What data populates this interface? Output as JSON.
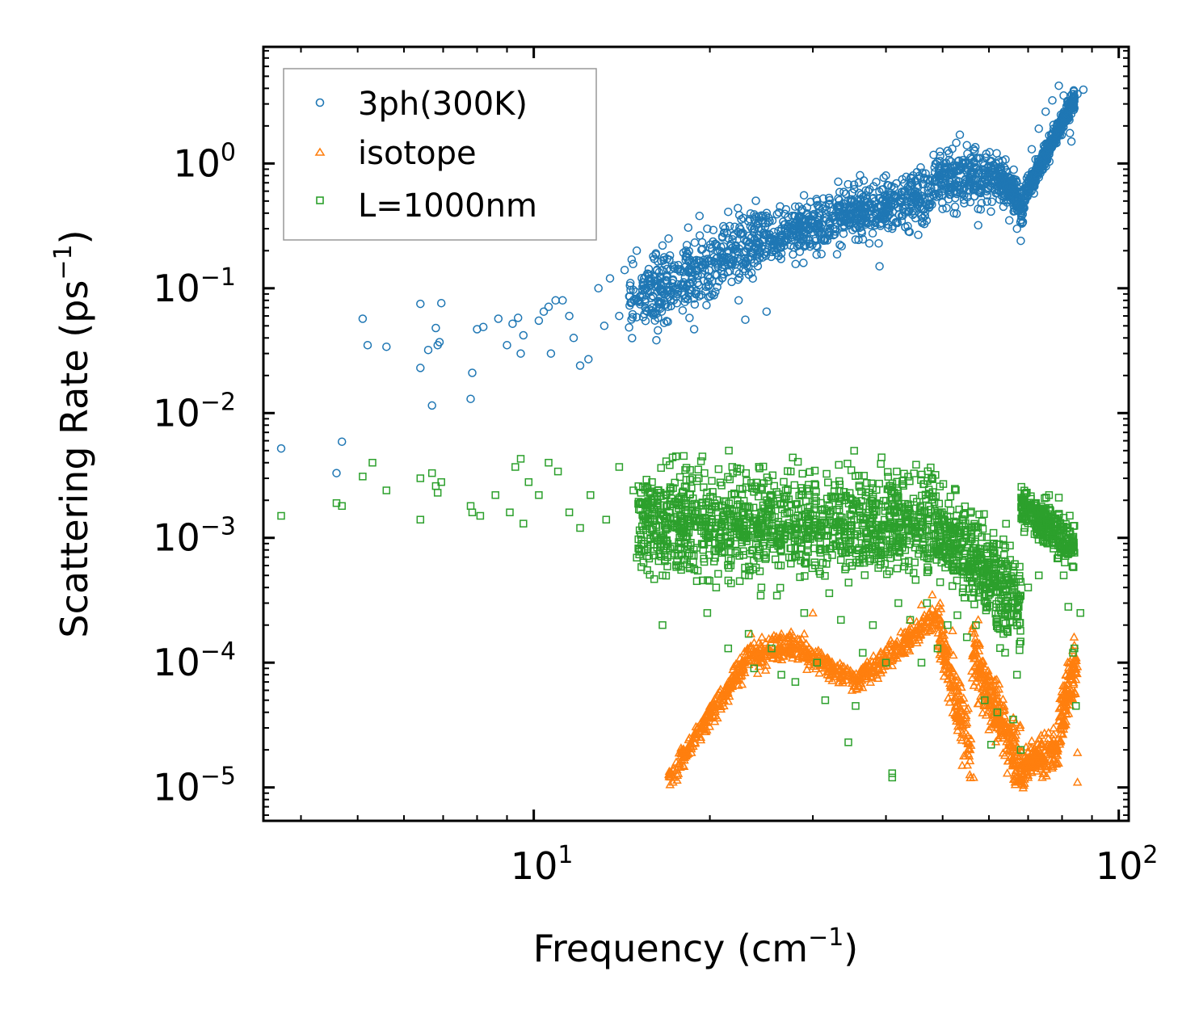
{
  "chart_data": {
    "type": "scatter",
    "title": "",
    "xlabel": "Frequency (cm",
    "xlabel_sup": "−1",
    "xlabel_end": ")",
    "ylabel": "Scattering Rate (ps",
    "ylabel_sup": "−1",
    "ylabel_end": ")",
    "xscale": "log",
    "yscale": "log",
    "xlim": [
      3.45,
      104
    ],
    "ylim": [
      5.4e-06,
      8.6
    ],
    "x_ticks": [
      {
        "value": 10,
        "base": "10",
        "exp": "1"
      },
      {
        "value": 100,
        "base": "10",
        "exp": "2"
      }
    ],
    "y_ticks": [
      {
        "value": 1,
        "base": "10",
        "exp": "0"
      },
      {
        "value": 0.1,
        "base": "10",
        "exp": "−1"
      },
      {
        "value": 0.01,
        "base": "10",
        "exp": "−2"
      },
      {
        "value": 0.001,
        "base": "10",
        "exp": "−3"
      },
      {
        "value": 0.0001,
        "base": "10",
        "exp": "−4"
      },
      {
        "value": 1e-05,
        "base": "10",
        "exp": "−5"
      }
    ],
    "legend_position": "top-left",
    "series": [
      {
        "name": "3ph(300K)",
        "marker": "circle",
        "color": "#1f77b4",
        "points": [
          [
            3.7,
            0.0052
          ],
          [
            4.6,
            0.0033
          ],
          [
            4.7,
            0.0059
          ],
          [
            5.1,
            0.057
          ],
          [
            5.2,
            0.035
          ],
          [
            5.6,
            0.034
          ],
          [
            6.4,
            0.075
          ],
          [
            6.4,
            0.023
          ],
          [
            6.6,
            0.032
          ],
          [
            6.7,
            0.0115
          ],
          [
            6.8,
            0.048
          ],
          [
            6.85,
            0.035
          ],
          [
            6.9,
            0.037
          ],
          [
            6.95,
            0.076
          ],
          [
            7.8,
            0.013
          ],
          [
            7.85,
            0.021
          ],
          [
            8.0,
            0.047
          ],
          [
            8.2,
            0.049
          ],
          [
            8.7,
            0.057
          ],
          [
            9.0,
            0.035
          ],
          [
            9.2,
            0.052
          ],
          [
            9.4,
            0.058
          ],
          [
            9.5,
            0.03
          ],
          [
            9.6,
            0.042
          ],
          [
            10.2,
            0.055
          ],
          [
            10.4,
            0.065
          ],
          [
            10.6,
            0.071
          ],
          [
            10.7,
            0.03
          ],
          [
            10.9,
            0.08
          ],
          [
            11.2,
            0.08
          ],
          [
            11.5,
            0.06
          ],
          [
            11.7,
            0.04
          ],
          [
            12.0,
            0.024
          ],
          [
            12.4,
            0.027
          ],
          [
            12.9,
            0.1
          ],
          [
            13.2,
            0.05
          ],
          [
            13.5,
            0.12
          ],
          [
            14.0,
            0.06
          ],
          [
            14.3,
            0.14
          ],
          [
            14.7,
            0.17
          ],
          [
            15.0,
            0.2
          ],
          [
            15.5,
            0.07
          ],
          [
            16.0,
            0.18
          ],
          [
            16.3,
            0.046
          ],
          [
            16.6,
            0.22
          ],
          [
            17.0,
            0.25
          ],
          [
            17.6,
            0.09
          ],
          [
            18.2,
            0.2
          ],
          [
            18.8,
            0.047
          ],
          [
            19.2,
            0.38
          ],
          [
            19.8,
            0.3
          ],
          [
            20.5,
            0.16
          ],
          [
            21.0,
            0.26
          ],
          [
            21.5,
            0.41
          ],
          [
            22.4,
            0.08
          ],
          [
            23.0,
            0.056
          ],
          [
            23.8,
            0.3
          ],
          [
            24.5,
            0.35
          ],
          [
            25.0,
            0.065
          ],
          [
            26.5,
            0.19
          ],
          [
            27.5,
            0.22
          ],
          [
            28.5,
            0.27
          ],
          [
            29.5,
            0.3
          ],
          [
            30.5,
            0.5
          ],
          [
            31.5,
            0.25
          ],
          [
            33.0,
            0.45
          ],
          [
            34.0,
            0.42
          ],
          [
            35.0,
            0.5
          ],
          [
            36.0,
            0.58
          ],
          [
            37.5,
            0.62
          ],
          [
            38.5,
            0.71
          ],
          [
            39.0,
            0.15
          ],
          [
            40.0,
            0.8
          ],
          [
            41.0,
            0.3
          ],
          [
            42.5,
            0.5
          ],
          [
            44.5,
            0.8
          ],
          [
            46.0,
            0.55
          ],
          [
            48.5,
            0.85
          ],
          [
            49.5,
            1.15
          ],
          [
            50.5,
            0.7
          ],
          [
            52.5,
            0.45
          ],
          [
            53.5,
            1.7
          ],
          [
            55.0,
            1.4
          ],
          [
            56.5,
            1.3
          ],
          [
            57.5,
            0.32
          ],
          [
            59.5,
            0.6
          ],
          [
            60.5,
            0.85
          ],
          [
            62.0,
            0.58
          ],
          [
            63.5,
            0.45
          ],
          [
            65.0,
            0.35
          ],
          [
            67.0,
            0.3
          ],
          [
            68.0,
            0.24
          ],
          [
            70.0,
            0.8
          ],
          [
            71.0,
            1.3
          ],
          [
            73.0,
            1.9
          ],
          [
            75.0,
            2.6
          ],
          [
            77.0,
            3.2
          ],
          [
            79.0,
            4.2
          ],
          [
            80.5,
            3.5
          ],
          [
            81.5,
            2.4
          ],
          [
            82.5,
            1.75
          ],
          [
            83.0,
            1.5
          ],
          [
            85.0,
            3.6
          ],
          [
            87.0,
            3.9
          ]
        ],
        "clusters": [
          {
            "x": [
              14.5,
              24.0
            ],
            "y_mid": [
              0.07,
              0.25
            ],
            "y_spread": 0.4,
            "n": 420
          },
          {
            "x": [
              24.0,
              48.0
            ],
            "y_mid": [
              0.25,
              0.55
            ],
            "y_spread": 0.3,
            "n": 650
          },
          {
            "x": [
              48.0,
              62.0
            ],
            "y_mid": [
              0.75,
              0.8
            ],
            "y_spread": 0.28,
            "n": 260
          },
          {
            "x": [
              62.0,
              69.0
            ],
            "y_mid": [
              0.8,
              0.45
            ],
            "y_spread": 0.2,
            "n": 170
          },
          {
            "x": [
              69.0,
              84.0
            ],
            "y_mid": [
              0.55,
              3.3
            ],
            "y_spread": 0.12,
            "n": 330
          }
        ]
      },
      {
        "name": "isotope",
        "marker": "triangle",
        "color": "#ff7f0e",
        "points": [
          [
            17.1,
            1.05e-05
          ],
          [
            17.3,
            1.1e-05
          ],
          [
            17.6,
            1.25e-05
          ],
          [
            18.0,
            1.5e-05
          ],
          [
            18.6,
            1.9e-05
          ],
          [
            19.3,
            2.4e-05
          ],
          [
            19.7,
            2.8e-05
          ],
          [
            20.6,
            3.6e-05
          ],
          [
            21.5,
            4.9e-05
          ],
          [
            22.7,
            6.7e-05
          ],
          [
            23.2,
            0.00013
          ],
          [
            23.5,
            0.00017
          ],
          [
            24.0,
            0.0001
          ],
          [
            25.0,
            9.5e-05
          ],
          [
            26.0,
            0.00016
          ],
          [
            26.5,
            0.00017
          ],
          [
            27.5,
            0.00015
          ],
          [
            29.0,
            0.00017
          ],
          [
            30.0,
            0.00025
          ],
          [
            31.0,
            0.00012
          ],
          [
            33.0,
            8e-05
          ],
          [
            35.0,
            6e-05
          ],
          [
            36.0,
            6.5e-05
          ],
          [
            38.0,
            8.5e-05
          ],
          [
            40.5,
            0.00014
          ],
          [
            44.0,
            0.00022
          ],
          [
            46.0,
            0.00029
          ],
          [
            48.0,
            0.00035
          ],
          [
            49.5,
            0.0003
          ],
          [
            52.0,
            0.00018
          ],
          [
            54.0,
            1.5e-05
          ],
          [
            56.5,
            1.2e-05
          ],
          [
            57.5,
            0.00022
          ],
          [
            60.0,
            8e-05
          ],
          [
            63.0,
            3e-05
          ],
          [
            66.5,
            1.1e-05
          ],
          [
            70.0,
            1.2e-05
          ],
          [
            74.0,
            1.2e-05
          ],
          [
            78.0,
            2e-05
          ],
          [
            81.0,
            6e-05
          ],
          [
            84.5,
            0.00011
          ],
          [
            85.0,
            1.1e-05
          ],
          [
            85.0,
            1.9e-05
          ]
        ],
        "clusters": [
          {
            "x": [
              17.0,
              23.5
            ],
            "y_mid": [
              1.2e-05,
              0.00012
            ],
            "y_spread": 0.12,
            "n": 220
          },
          {
            "x": [
              23.5,
              27.5
            ],
            "y_mid": [
              0.00011,
              0.00014
            ],
            "y_spread": 0.15,
            "n": 110
          },
          {
            "x": [
              27.5,
              35.5
            ],
            "y_mid": [
              0.00014,
              7e-05
            ],
            "y_spread": 0.12,
            "n": 170
          },
          {
            "x": [
              35.5,
              49.0
            ],
            "y_mid": [
              7e-05,
              0.00024
            ],
            "y_spread": 0.12,
            "n": 220
          },
          {
            "x": [
              49.0,
              56.0
            ],
            "y_mid": [
              0.0002,
              1.8e-05
            ],
            "y_spread": 0.3,
            "n": 160
          },
          {
            "x": [
              56.0,
              69.0
            ],
            "y_mid": [
              0.00012,
              1.2e-05
            ],
            "y_spread": 0.35,
            "n": 280
          },
          {
            "x": [
              69.0,
              79.0
            ],
            "y_mid": [
              1.5e-05,
              2.2e-05
            ],
            "y_spread": 0.2,
            "n": 160
          },
          {
            "x": [
              79.0,
              85.0
            ],
            "y_mid": [
              3e-05,
              0.00011
            ],
            "y_spread": 0.3,
            "n": 120
          }
        ]
      },
      {
        "name": "L=1000nm",
        "marker": "square",
        "color": "#2ca02c",
        "points": [
          [
            3.7,
            0.0015
          ],
          [
            4.6,
            0.0019
          ],
          [
            4.7,
            0.0018
          ],
          [
            5.1,
            0.0031
          ],
          [
            5.3,
            0.004
          ],
          [
            5.6,
            0.0024
          ],
          [
            6.4,
            0.003
          ],
          [
            6.4,
            0.0014
          ],
          [
            6.7,
            0.0033
          ],
          [
            6.8,
            0.0026
          ],
          [
            6.85,
            0.0023
          ],
          [
            6.95,
            0.0028
          ],
          [
            7.8,
            0.0018
          ],
          [
            7.85,
            0.0016
          ],
          [
            8.1,
            0.0015
          ],
          [
            8.6,
            0.0022
          ],
          [
            9.1,
            0.0016
          ],
          [
            9.3,
            0.0037
          ],
          [
            9.5,
            0.0043
          ],
          [
            9.6,
            0.0013
          ],
          [
            9.8,
            0.0028
          ],
          [
            10.2,
            0.0022
          ],
          [
            10.6,
            0.004
          ],
          [
            11.0,
            0.0034
          ],
          [
            11.5,
            0.0016
          ],
          [
            12.0,
            0.0012
          ],
          [
            12.5,
            0.0022
          ],
          [
            13.3,
            0.0014
          ],
          [
            14.0,
            0.0037
          ],
          [
            14.8,
            0.0024
          ],
          [
            15.4,
            0.0009
          ],
          [
            16.0,
            0.0012
          ],
          [
            16.6,
            0.0002
          ],
          [
            16.6,
            0.0005
          ],
          [
            17.5,
            0.0045
          ],
          [
            18.5,
            0.0035
          ],
          [
            19.0,
            0.00045
          ],
          [
            19.8,
            0.00025
          ],
          [
            20.5,
            0.0004
          ],
          [
            21.5,
            0.00013
          ],
          [
            22.5,
            0.00045
          ],
          [
            23.3,
            0.00017
          ],
          [
            23.8,
            9e-05
          ],
          [
            24.5,
            0.0004
          ],
          [
            25.5,
            0.00013
          ],
          [
            26.5,
            8e-05
          ],
          [
            27.5,
            0.0034
          ],
          [
            28.0,
            7e-05
          ],
          [
            29.0,
            0.00025
          ],
          [
            30.5,
            0.0001
          ],
          [
            31.5,
            5e-05
          ],
          [
            32.0,
            0.00036
          ],
          [
            33.5,
            0.00022
          ],
          [
            34.5,
            2.3e-05
          ],
          [
            35.5,
            4.5e-05
          ],
          [
            36.5,
            0.00012
          ],
          [
            38.0,
            0.0002
          ],
          [
            40.0,
            0.0001
          ],
          [
            41.0,
            1.3e-05
          ],
          [
            41.0,
            1.2e-05
          ],
          [
            42.0,
            0.0003
          ],
          [
            44.0,
            0.00022
          ],
          [
            46.0,
            0.0001
          ],
          [
            47.0,
            0.0003
          ],
          [
            49.0,
            0.00013
          ],
          [
            51.0,
            0.0002
          ],
          [
            53.0,
            0.00024
          ],
          [
            55.0,
            0.00016
          ],
          [
            57.0,
            0.0002
          ],
          [
            59.0,
            5e-05
          ],
          [
            60.5,
            2.2e-05
          ],
          [
            62.0,
            4e-05
          ],
          [
            63.5,
            0.00017
          ],
          [
            66.0,
            3.5e-05
          ],
          [
            67.0,
            8e-05
          ],
          [
            68.0,
            2e-05
          ],
          [
            70.0,
            0.0004
          ],
          [
            73.0,
            0.0005
          ],
          [
            76.0,
            0.0022
          ],
          [
            79.0,
            0.0021
          ],
          [
            80.5,
            0.0005
          ],
          [
            82.0,
            0.00028
          ],
          [
            83.5,
            0.00012
          ],
          [
            84.0,
            0.00013
          ],
          [
            84.5,
            4.5e-05
          ],
          [
            86.0,
            0.00025
          ]
        ],
        "clusters": [
          {
            "x": [
              15.0,
              49.0
            ],
            "y_mid": [
              0.0013,
              0.0013
            ],
            "y_spread": 0.55,
            "n": 1300
          },
          {
            "x": [
              49.0,
              68.0
            ],
            "y_mid": [
              0.0012,
              0.0003
            ],
            "y_spread": 0.5,
            "n": 450
          },
          {
            "x": [
              68.0,
              84.0
            ],
            "y_mid": [
              0.0018,
              0.0009
            ],
            "y_spread": 0.25,
            "n": 280
          }
        ]
      }
    ]
  }
}
